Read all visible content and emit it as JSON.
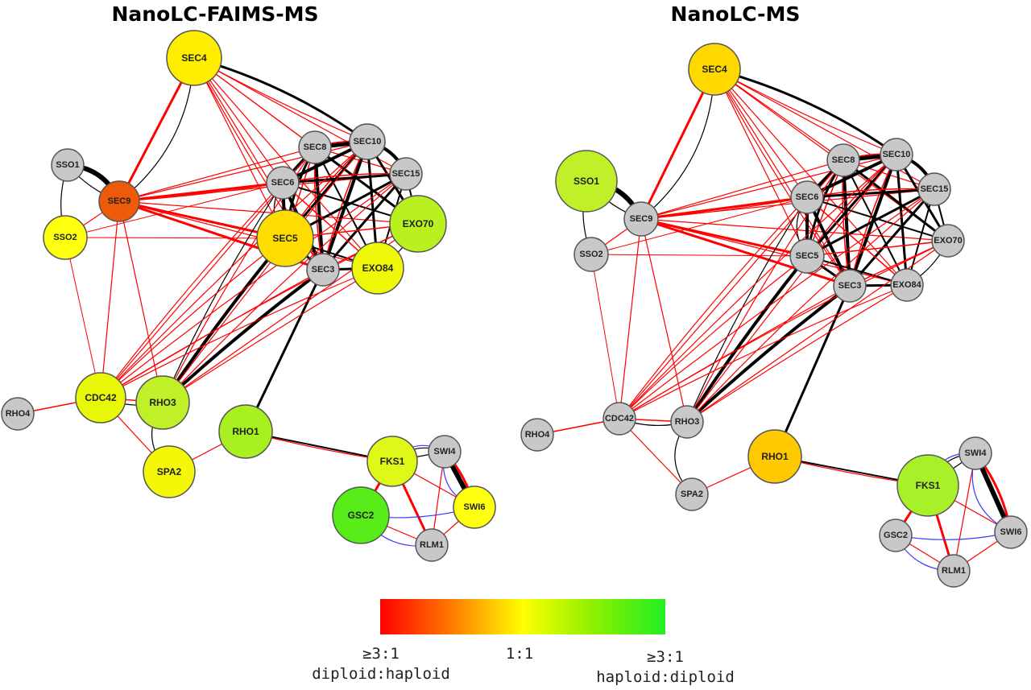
{
  "panels": [
    {
      "id": "faims",
      "title": "NanoLC-FAIMS-MS",
      "nodes": [
        {
          "id": "SEC4",
          "color": "#ffee00"
        },
        {
          "id": "SSO1",
          "color": "#c8c8c8"
        },
        {
          "id": "SEC9",
          "color": "#ec5a0a"
        },
        {
          "id": "SSO2",
          "color": "#ffff10"
        },
        {
          "id": "SEC8",
          "color": "#c8c8c8"
        },
        {
          "id": "SEC10",
          "color": "#c8c8c8"
        },
        {
          "id": "SEC15",
          "color": "#c8c8c8"
        },
        {
          "id": "SEC6",
          "color": "#c8c8c8"
        },
        {
          "id": "SEC5",
          "color": "#ffdd00"
        },
        {
          "id": "EXO70",
          "color": "#b8f020"
        },
        {
          "id": "SEC3",
          "color": "#c8c8c8"
        },
        {
          "id": "EXO84",
          "color": "#eef808"
        },
        {
          "id": "CDC42",
          "color": "#e8f808"
        },
        {
          "id": "RHO3",
          "color": "#c0f028"
        },
        {
          "id": "RHO4",
          "color": "#c8c8c8"
        },
        {
          "id": "RHO1",
          "color": "#a8f020"
        },
        {
          "id": "SPA2",
          "color": "#f4f808"
        },
        {
          "id": "FKS1",
          "color": "#e0f818"
        },
        {
          "id": "SWI4",
          "color": "#c8c8c8"
        },
        {
          "id": "GSC2",
          "color": "#58ec18"
        },
        {
          "id": "SWI6",
          "color": "#ffff10"
        },
        {
          "id": "RLM1",
          "color": "#c8c8c8"
        }
      ]
    },
    {
      "id": "nolc",
      "title": "NanoLC-MS",
      "nodes": [
        {
          "id": "SEC4",
          "color": "#ffd800"
        },
        {
          "id": "SSO1",
          "color": "#c0f028"
        },
        {
          "id": "SEC9",
          "color": "#c8c8c8"
        },
        {
          "id": "SSO2",
          "color": "#c8c8c8"
        },
        {
          "id": "SEC8",
          "color": "#c8c8c8"
        },
        {
          "id": "SEC10",
          "color": "#c8c8c8"
        },
        {
          "id": "SEC15",
          "color": "#c8c8c8"
        },
        {
          "id": "SEC6",
          "color": "#c8c8c8"
        },
        {
          "id": "SEC5",
          "color": "#c8c8c8"
        },
        {
          "id": "EXO70",
          "color": "#c8c8c8"
        },
        {
          "id": "SEC3",
          "color": "#c8c8c8"
        },
        {
          "id": "EXO84",
          "color": "#c8c8c8"
        },
        {
          "id": "CDC42",
          "color": "#c8c8c8"
        },
        {
          "id": "RHO3",
          "color": "#c8c8c8"
        },
        {
          "id": "RHO4",
          "color": "#c8c8c8"
        },
        {
          "id": "RHO1",
          "color": "#ffc800"
        },
        {
          "id": "SPA2",
          "color": "#c8c8c8"
        },
        {
          "id": "FKS1",
          "color": "#a8f028"
        },
        {
          "id": "SWI4",
          "color": "#c8c8c8"
        },
        {
          "id": "GSC2",
          "color": "#c8c8c8"
        },
        {
          "id": "SWI6",
          "color": "#c8c8c8"
        },
        {
          "id": "RLM1",
          "color": "#c8c8c8"
        }
      ]
    }
  ],
  "legend": {
    "colors": [
      "#ff0000",
      "#ff7a00",
      "#ffff00",
      "#8cf000",
      "#22ee22"
    ],
    "left_label": [
      "≥3:1",
      "diploid:haploid"
    ],
    "center_label": "1:1",
    "right_label": [
      "≥3:1",
      "haploid:diploid"
    ]
  }
}
